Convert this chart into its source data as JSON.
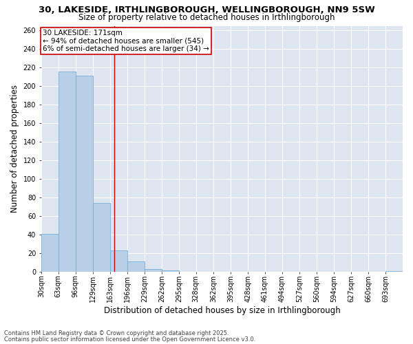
{
  "title1": "30, LAKESIDE, IRTHLINGBOROUGH, WELLINGBOROUGH, NN9 5SW",
  "title2": "Size of property relative to detached houses in Irthlingborough",
  "xlabel": "Distribution of detached houses by size in Irthlingborough",
  "ylabel": "Number of detached properties",
  "footnote1": "Contains HM Land Registry data © Crown copyright and database right 2025.",
  "footnote2": "Contains public sector information licensed under the Open Government Licence v3.0.",
  "bin_labels": [
    "30sqm",
    "63sqm",
    "96sqm",
    "129sqm",
    "163sqm",
    "196sqm",
    "229sqm",
    "262sqm",
    "295sqm",
    "328sqm",
    "362sqm",
    "395sqm",
    "428sqm",
    "461sqm",
    "494sqm",
    "527sqm",
    "560sqm",
    "594sqm",
    "627sqm",
    "660sqm",
    "693sqm"
  ],
  "bin_edges": [
    30,
    63,
    96,
    129,
    163,
    196,
    229,
    262,
    295,
    328,
    362,
    395,
    428,
    461,
    494,
    527,
    560,
    594,
    627,
    660,
    693,
    726
  ],
  "values": [
    41,
    216,
    211,
    74,
    23,
    11,
    3,
    2,
    0,
    0,
    0,
    0,
    0,
    0,
    0,
    0,
    0,
    0,
    0,
    0,
    1
  ],
  "bar_color": "#b8cfe8",
  "bar_edge_color": "#7aadd4",
  "red_line_x": 171,
  "annotation_title": "30 LAKESIDE: 171sqm",
  "annotation_line1": "← 94% of detached houses are smaller (545)",
  "annotation_line2": "6% of semi-detached houses are larger (34) →",
  "annotation_box_color": "#ffffff",
  "annotation_border_color": "#cc0000",
  "ylim": [
    0,
    265
  ],
  "yticks": [
    0,
    20,
    40,
    60,
    80,
    100,
    120,
    140,
    160,
    180,
    200,
    220,
    240,
    260
  ],
  "bg_color": "#dde6f0",
  "grid_color": "#ffffff",
  "fig_bg_color": "#ffffff",
  "title1_fontsize": 9.5,
  "title2_fontsize": 8.5,
  "axis_label_fontsize": 8.5,
  "tick_fontsize": 7,
  "footnote_fontsize": 6,
  "annot_fontsize": 7.5
}
